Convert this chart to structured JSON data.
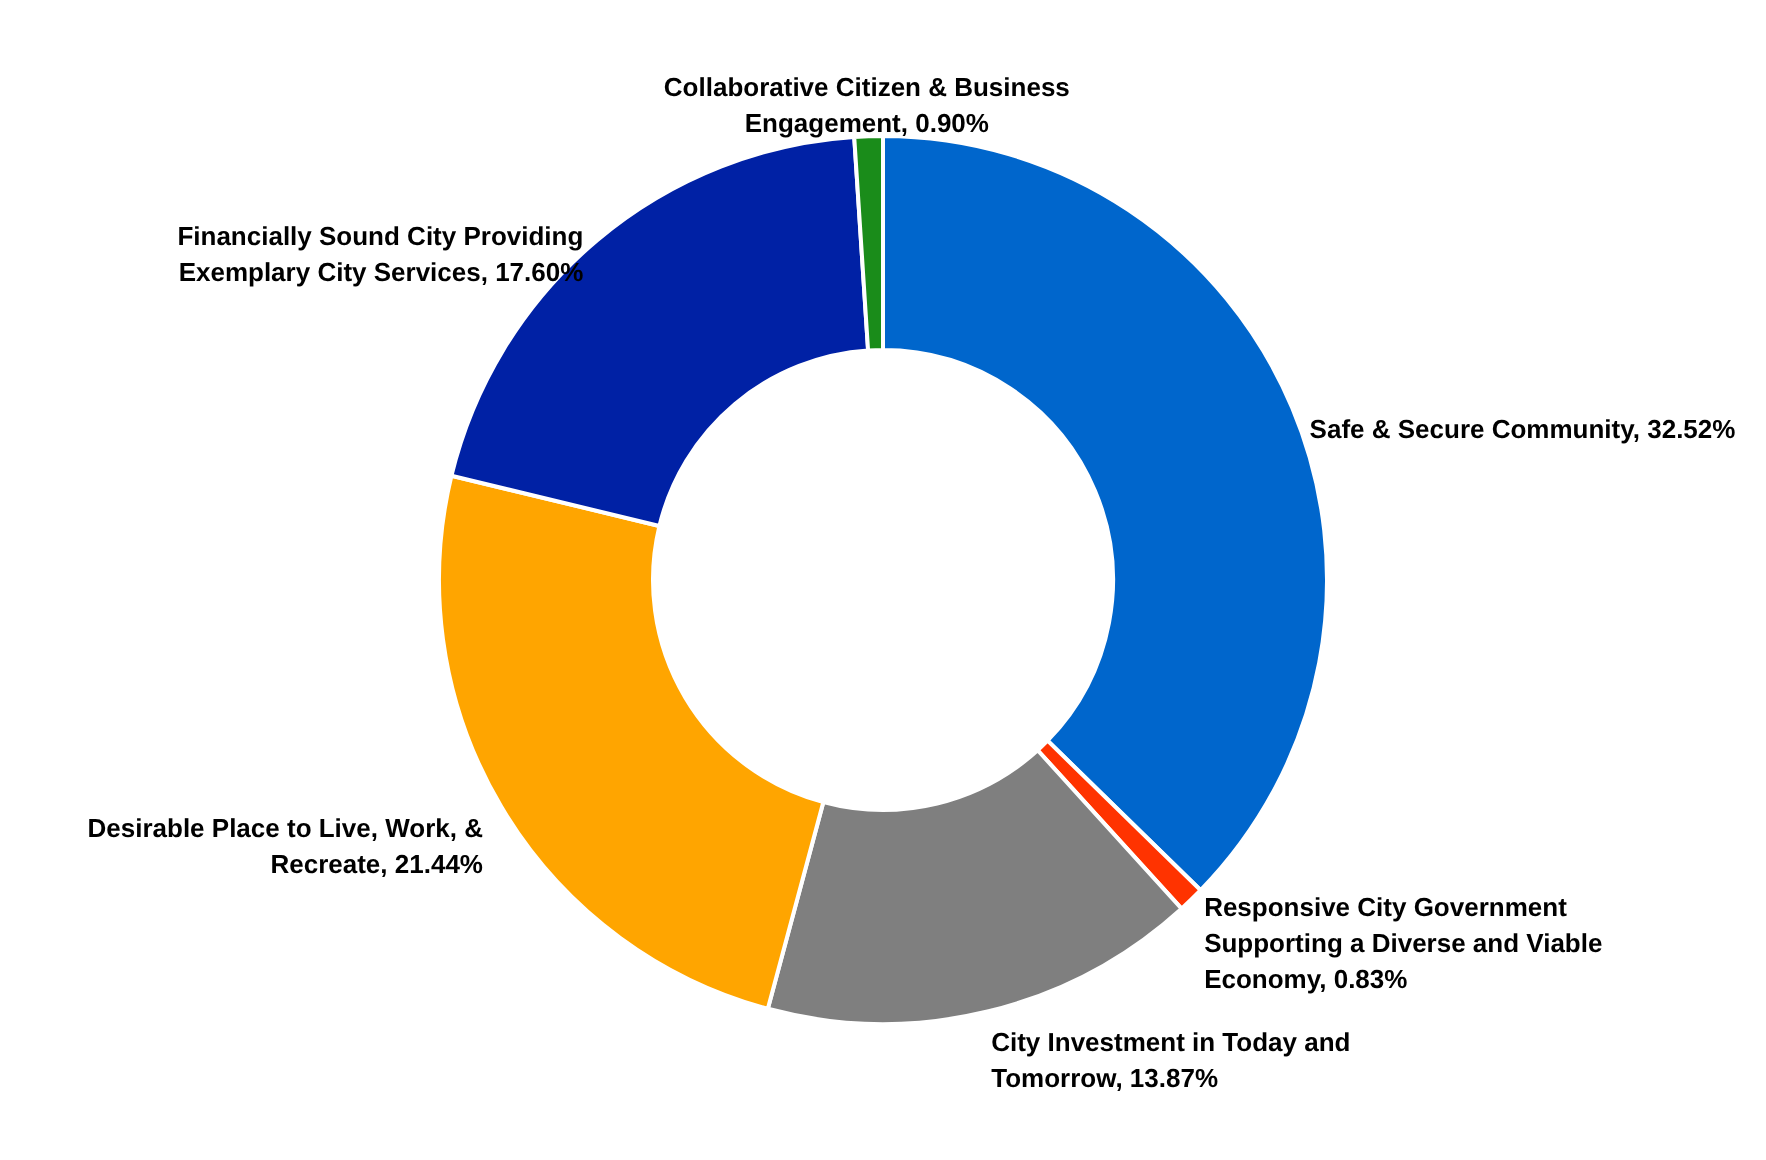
{
  "chart_data": {
    "type": "donut",
    "categories": [
      "Safe & Secure Community",
      "Responsive City Government Supporting a Diverse and Viable Economy",
      "City Investment in Today and Tomorrow",
      "Desirable Place to Live, Work, & Recreate",
      "Financially Sound City Providing Exemplary City Services",
      "Collaborative Citizen & Business Engagement"
    ],
    "values": [
      32.52,
      0.83,
      13.87,
      21.44,
      17.6,
      0.9
    ],
    "value_labels": [
      "32.52%",
      "0.83%",
      "13.87%",
      "21.44%",
      "17.60%",
      "0.90%"
    ],
    "colors": [
      "#0066cc",
      "#ff3300",
      "#7f7f7f",
      "#ffa500",
      "#0021a5",
      "#1a8c1a"
    ]
  }
}
